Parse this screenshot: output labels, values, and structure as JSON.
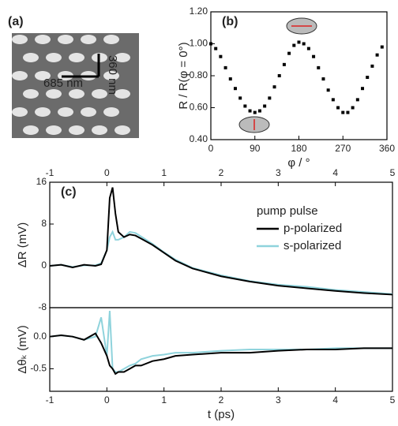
{
  "panel_a": {
    "label": "(a)",
    "scale_x": "685 nm",
    "scale_y": "360 nm"
  },
  "chart_data": [
    {
      "type": "scatter",
      "panel_label": "(b)",
      "xlabel": "φ / °",
      "ylabel": "R / R(φ = 0°)",
      "x": [
        0,
        10,
        20,
        30,
        40,
        50,
        60,
        70,
        80,
        90,
        100,
        110,
        120,
        130,
        140,
        150,
        160,
        170,
        180,
        190,
        200,
        210,
        220,
        230,
        240,
        250,
        260,
        270,
        280,
        290,
        300,
        310,
        320,
        330,
        340,
        350
      ],
      "series": [
        {
          "color": "#000000",
          "values": [
            1.0,
            0.97,
            0.92,
            0.85,
            0.78,
            0.72,
            0.66,
            0.61,
            0.58,
            0.57,
            0.58,
            0.61,
            0.66,
            0.73,
            0.8,
            0.87,
            0.94,
            0.99,
            1.01,
            1.0,
            0.97,
            0.92,
            0.85,
            0.78,
            0.71,
            0.65,
            0.6,
            0.57,
            0.57,
            0.6,
            0.65,
            0.72,
            0.79,
            0.86,
            0.93,
            0.98
          ]
        }
      ],
      "xlim": [
        0,
        360
      ],
      "xticks": [
        0,
        90,
        180,
        270,
        360
      ],
      "ylim": [
        0.4,
        1.2
      ],
      "yticks": [
        {
          "value": 0.4,
          "label": "0.40"
        },
        {
          "value": 0.6,
          "label": "0.60"
        },
        {
          "value": 0.8,
          "label": "0.80"
        },
        {
          "value": 1.0,
          "label": "1.00"
        },
        {
          "value": 1.2,
          "label": "1.20"
        }
      ]
    },
    {
      "type": "line",
      "panel_label": "(c)",
      "ylabel": "ΔR  (mV)",
      "legend_title": "pump pulse",
      "legend": "upper right",
      "x": [
        -1,
        -0.8,
        -0.6,
        -0.4,
        -0.2,
        -0.1,
        0,
        0.05,
        0.1,
        0.15,
        0.2,
        0.3,
        0.4,
        0.5,
        0.6,
        0.8,
        1,
        1.2,
        1.5,
        2,
        2.5,
        3,
        3.5,
        4,
        4.5,
        5
      ],
      "series": [
        {
          "name": "p-polarized",
          "color": "#000000",
          "values": [
            0,
            0.2,
            -0.3,
            0.2,
            0,
            0.3,
            3,
            13,
            15,
            10,
            6.5,
            5.5,
            6,
            5.8,
            5.2,
            4,
            2.5,
            1,
            -0.5,
            -2,
            -3,
            -3.8,
            -4.3,
            -4.8,
            -5.2,
            -5.5
          ]
        },
        {
          "name": "s-polarized",
          "color": "#8fd3dc",
          "values": [
            0,
            0.2,
            -0.2,
            0.1,
            0.1,
            0.5,
            3,
            5.5,
            6.5,
            5,
            5,
            5.5,
            6.5,
            6.3,
            5.6,
            4.2,
            2.6,
            1.2,
            -0.4,
            -1.8,
            -2.9,
            -3.6,
            -4,
            -4.6,
            -5,
            -5.4
          ]
        }
      ],
      "xlim": [
        -1,
        5
      ],
      "top_xticks": [
        -1,
        0,
        1,
        2,
        3,
        4,
        5
      ],
      "ylim": [
        -8,
        16
      ],
      "yticks": [
        -8,
        0,
        8,
        16
      ]
    },
    {
      "type": "line",
      "xlabel": "t (ps)",
      "ylabel": "Δθₖ (mV)",
      "x": [
        -1,
        -0.8,
        -0.6,
        -0.4,
        -0.2,
        -0.1,
        0,
        0.05,
        0.1,
        0.15,
        0.2,
        0.3,
        0.4,
        0.5,
        0.6,
        0.8,
        1,
        1.2,
        1.5,
        2,
        2.5,
        3,
        3.5,
        4,
        4.5,
        5
      ],
      "series": [
        {
          "color": "#000000",
          "values": [
            0,
            0.02,
            0,
            -0.05,
            0.05,
            -0.1,
            -0.3,
            -0.45,
            -0.5,
            -0.58,
            -0.55,
            -0.55,
            -0.5,
            -0.45,
            -0.45,
            -0.38,
            -0.35,
            -0.3,
            -0.28,
            -0.25,
            -0.25,
            -0.22,
            -0.2,
            -0.2,
            -0.18,
            -0.18
          ]
        },
        {
          "color": "#8fd3dc",
          "values": [
            0,
            0.02,
            0,
            -0.05,
            0,
            0.3,
            -0.3,
            0.4,
            -0.5,
            -0.55,
            -0.55,
            -0.5,
            -0.45,
            -0.42,
            -0.35,
            -0.3,
            -0.28,
            -0.25,
            -0.25,
            -0.22,
            -0.2,
            -0.2,
            -0.2,
            -0.18,
            -0.18,
            -0.18
          ]
        }
      ],
      "xlim": [
        -1,
        5
      ],
      "xticks": [
        -1,
        0,
        1,
        2,
        3,
        4,
        5
      ],
      "ylim": [
        -0.85,
        0.45
      ],
      "yticks": [
        -0.5,
        {
          "value": 0,
          "label": "0.0"
        }
      ]
    }
  ]
}
